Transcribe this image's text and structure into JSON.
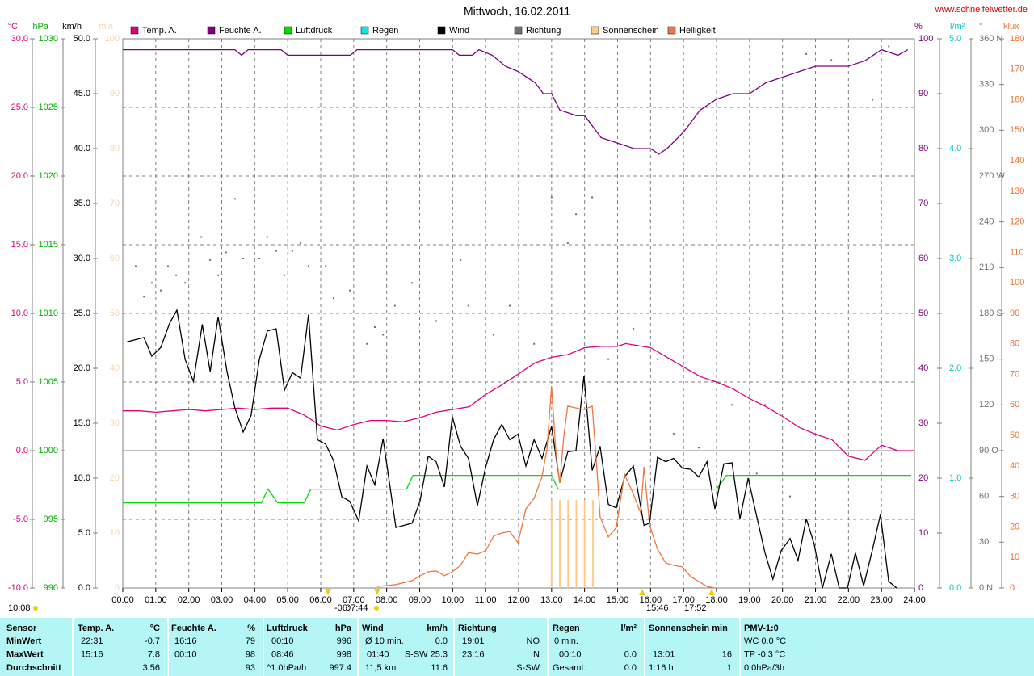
{
  "chart_data": {
    "type": "line",
    "title": "Mittwoch, 16.02.2011",
    "source": "www.schneifelwetter.de",
    "xlim": [
      0,
      24
    ],
    "xticks": [
      {
        "value": 0,
        "label": "00:00"
      },
      {
        "value": 1,
        "label": "01:00"
      },
      {
        "value": 2,
        "label": "02:00"
      },
      {
        "value": 3,
        "label": "03:00"
      },
      {
        "value": 4,
        "label": "04:00"
      },
      {
        "value": 5,
        "label": "05:00"
      },
      {
        "value": 6,
        "label": "06:00"
      },
      {
        "value": 7,
        "label": "07:00"
      },
      {
        "value": 8,
        "label": "08:00"
      },
      {
        "value": 9,
        "label": "09:00"
      },
      {
        "value": 10,
        "label": "10:00"
      },
      {
        "value": 11,
        "label": "11:00"
      },
      {
        "value": 12,
        "label": "12:00"
      },
      {
        "value": 13,
        "label": "13:00"
      },
      {
        "value": 14,
        "label": "14:00"
      },
      {
        "value": 15,
        "label": "15:00"
      },
      {
        "value": 16,
        "label": "16:00"
      },
      {
        "value": 17,
        "label": "17:00"
      },
      {
        "value": 18,
        "label": "18:00"
      },
      {
        "value": 19,
        "label": "19:00"
      },
      {
        "value": 20,
        "label": "20:00"
      },
      {
        "value": 21,
        "label": "21:00"
      },
      {
        "value": 22,
        "label": "22:00"
      },
      {
        "value": 23,
        "label": "23:00"
      },
      {
        "value": 24,
        "label": "24:00"
      }
    ],
    "grid": true,
    "axes": [
      {
        "label": "°C",
        "side": "left",
        "color": "#e0007f",
        "lim": [
          -10,
          30
        ],
        "ticks": [
          {
            "value": -10,
            "label": "-10.0"
          },
          {
            "value": -5,
            "label": "-5.0"
          },
          {
            "value": 0,
            "label": "0.0"
          },
          {
            "value": 5,
            "label": "5.0"
          },
          {
            "value": 10,
            "label": "10.0"
          },
          {
            "value": 15,
            "label": "15.0"
          },
          {
            "value": 20,
            "label": "20.0"
          },
          {
            "value": 25,
            "label": "25.0"
          },
          {
            "value": 30,
            "label": "30.0"
          }
        ]
      },
      {
        "label": "hPa",
        "side": "left",
        "color": "#00b000",
        "lim": [
          990,
          1030
        ],
        "ticks": [
          990,
          995,
          1000,
          1005,
          1010,
          1015,
          1020,
          1025,
          1030
        ]
      },
      {
        "label": "km/h",
        "side": "left",
        "color": "#000000",
        "lim": [
          0,
          50
        ],
        "ticks": [
          {
            "value": 0,
            "label": "0.0"
          },
          {
            "value": 5,
            "label": "5.0"
          },
          {
            "value": 10,
            "label": "10.0"
          },
          {
            "value": 15,
            "label": "15.0"
          },
          {
            "value": 20,
            "label": "20.0"
          },
          {
            "value": 25,
            "label": "25.0"
          },
          {
            "value": 30,
            "label": "30.0"
          },
          {
            "value": 35,
            "label": "35.0"
          },
          {
            "value": 40,
            "label": "40.0"
          },
          {
            "value": 45,
            "label": "45.0"
          },
          {
            "value": 50,
            "label": "50.0"
          }
        ]
      },
      {
        "label": "min",
        "side": "left",
        "color": "#f8d4a8",
        "lim": [
          0,
          100
        ],
        "ticks": [
          0,
          10,
          20,
          30,
          40,
          50,
          60,
          70,
          80,
          90,
          100
        ]
      },
      {
        "label": "%",
        "side": "right",
        "color": "#800080",
        "lim": [
          0,
          100
        ],
        "ticks": [
          0,
          10,
          20,
          30,
          40,
          50,
          60,
          70,
          80,
          90,
          100
        ]
      },
      {
        "label": "l/m²",
        "side": "right",
        "color": "#00c8c8",
        "lim": [
          0,
          5
        ],
        "ticks": [
          {
            "value": 0,
            "label": "0.0"
          },
          {
            "value": 1,
            "label": "1.0"
          },
          {
            "value": 2,
            "label": "2.0"
          },
          {
            "value": 3,
            "label": "3.0"
          },
          {
            "value": 4,
            "label": "4.0"
          },
          {
            "value": 5,
            "label": "5.0"
          }
        ]
      },
      {
        "label": "°",
        "side": "right",
        "color": "#707070",
        "lim": [
          0,
          360
        ],
        "ticks": [
          {
            "value": 0,
            "label": "0 N"
          },
          30,
          60,
          {
            "value": 90,
            "label": "90 O"
          },
          120,
          150,
          {
            "value": 180,
            "label": "180 S"
          },
          210,
          240,
          {
            "value": 270,
            "label": "270 W"
          },
          300,
          330,
          {
            "value": 360,
            "label": "360 N"
          }
        ]
      },
      {
        "label": "klux",
        "side": "right",
        "color": "#f07030",
        "lim": [
          0,
          180
        ],
        "ticks": [
          0,
          10,
          20,
          30,
          40,
          50,
          60,
          70,
          80,
          90,
          100,
          110,
          120,
          130,
          140,
          150,
          160,
          170,
          180
        ]
      }
    ],
    "series": [
      {
        "name": "Temp. A.",
        "color": "#e0007f",
        "type": "line",
        "axis": 0,
        "x": [
          0,
          0.5,
          1,
          1.5,
          2,
          2.5,
          3,
          3.5,
          4,
          4.5,
          5,
          5.5,
          6,
          6.5,
          7,
          7.5,
          8,
          8.5,
          9,
          9.5,
          10,
          10.5,
          11,
          11.5,
          12,
          12.5,
          13,
          13.5,
          14,
          14.5,
          15,
          15.25,
          15.5,
          16,
          16.5,
          17,
          17.5,
          18,
          18.5,
          19,
          19.5,
          20,
          20.5,
          21,
          21.5,
          22,
          22.5,
          23,
          23.5,
          24
        ],
        "values": [
          2.9,
          2.9,
          2.8,
          2.9,
          3.0,
          2.9,
          3.0,
          3.1,
          3.0,
          3.1,
          3.1,
          2.6,
          1.8,
          1.5,
          1.9,
          2.2,
          2.2,
          2.1,
          2.4,
          2.8,
          3.0,
          3.2,
          4.1,
          4.8,
          5.6,
          6.4,
          6.8,
          7.0,
          7.5,
          7.6,
          7.6,
          7.8,
          7.7,
          7.5,
          6.8,
          6.1,
          5.4,
          5.0,
          4.5,
          3.8,
          3.2,
          2.5,
          1.7,
          1.2,
          0.8,
          -0.4,
          -0.7,
          0.4,
          0.0,
          0.0
        ]
      },
      {
        "name": "Feuchte A.",
        "color": "#800080",
        "type": "line",
        "axis": 4,
        "x": [
          0,
          3.4,
          3.6,
          3.8,
          4.8,
          5.0,
          6.9,
          7.1,
          10.0,
          10.2,
          10.6,
          10.8,
          11.2,
          11.6,
          12.0,
          12.5,
          12.75,
          13.0,
          13.25,
          13.75,
          14.0,
          14.5,
          15.0,
          15.5,
          16.0,
          16.25,
          16.5,
          17.0,
          17.5,
          18.0,
          18.5,
          19.0,
          19.5,
          20.0,
          20.5,
          21.0,
          22.0,
          22.5,
          23.0,
          23.5,
          23.8
        ],
        "values": [
          98,
          98,
          97,
          98,
          98,
          97,
          97,
          98,
          98,
          97,
          97,
          98,
          97,
          95,
          94,
          92,
          90,
          90,
          87,
          86,
          86,
          82,
          81,
          80,
          80,
          79,
          80,
          83,
          87,
          89,
          90,
          90,
          92,
          93,
          94,
          95,
          95,
          96,
          98,
          97,
          98
        ]
      },
      {
        "name": "Luftdruck",
        "color": "#00dd00",
        "type": "line",
        "axis": 1,
        "x": [
          0,
          4.2,
          4.4,
          4.7,
          5.5,
          5.7,
          8.6,
          8.8,
          13.0,
          13.2,
          18.0,
          18.3,
          23.9
        ],
        "values": [
          996.2,
          996.2,
          997.2,
          996.2,
          996.2,
          997.2,
          997.2,
          998.2,
          998.2,
          997.2,
          997.2,
          998.2,
          998.2
        ]
      },
      {
        "name": "Regen",
        "color": "#00e8e8",
        "type": "line",
        "axis": 5,
        "x": [],
        "values": []
      },
      {
        "name": "Wind",
        "color": "#000000",
        "type": "line",
        "axis": 2,
        "x": [
          0.12,
          0.64,
          0.88,
          1.15,
          1.42,
          1.64,
          1.89,
          2.14,
          2.41,
          2.65,
          2.89,
          3.16,
          3.4,
          3.65,
          3.89,
          4.14,
          4.38,
          4.65,
          4.9,
          5.14,
          5.39,
          5.63,
          5.9,
          6.15,
          6.39,
          6.64,
          6.88,
          7.15,
          7.4,
          7.64,
          7.89,
          8.28,
          8.52,
          8.77,
          9.01,
          9.26,
          9.5,
          9.75,
          9.99,
          10.24,
          10.48,
          10.75,
          11.0,
          11.24,
          11.49,
          11.73,
          11.98,
          12.22,
          12.47,
          12.71,
          13.0,
          13.25,
          13.49,
          13.74,
          13.98,
          14.23,
          14.47,
          14.72,
          14.96,
          15.21,
          15.48,
          15.8,
          15.97,
          16.21,
          16.46,
          16.7,
          16.97,
          17.22,
          17.46,
          17.71,
          17.95,
          18.22,
          18.47,
          18.71,
          18.96,
          19.22,
          19.47,
          19.71,
          19.96,
          20.23,
          20.47,
          20.72,
          20.96,
          21.21,
          21.48,
          21.72,
          21.97,
          22.21,
          22.46,
          22.73,
          22.97,
          23.22,
          23.46
        ],
        "values": [
          22.4,
          22.8,
          21.1,
          21.9,
          24.1,
          25.3,
          20.8,
          18.8,
          24.0,
          19.7,
          24.7,
          19.7,
          16.4,
          14.2,
          15.7,
          20.8,
          23.4,
          23.6,
          18.0,
          19.6,
          19.1,
          24.9,
          13.5,
          13.1,
          11.6,
          8.3,
          7.9,
          6.1,
          11.1,
          9.4,
          13.6,
          5.5,
          5.7,
          5.9,
          7.9,
          12.0,
          11.5,
          9.2,
          15.6,
          12.9,
          11.8,
          7.5,
          11.0,
          13.5,
          14.9,
          13.5,
          14.0,
          11.1,
          13.5,
          11.8,
          14.7,
          9.6,
          12.4,
          12.5,
          19.3,
          10.7,
          12.9,
          7.6,
          7.3,
          10.1,
          11.1,
          5.7,
          5.9,
          11.9,
          11.5,
          11.8,
          10.9,
          10.8,
          10.1,
          11.5,
          7.2,
          11.3,
          11.4,
          6.3,
          10.0,
          6.5,
          3.2,
          0.8,
          3.4,
          4.5,
          2.5,
          6.3,
          4.0,
          0.0,
          3.1,
          0.0,
          0.0,
          3.2,
          0.2,
          3.5,
          6.7,
          0.6,
          0.0
        ]
      },
      {
        "name": "Richtung",
        "color": "#707070",
        "type": "scatter",
        "axis": 6,
        "x": [
          0.39,
          0.64,
          0.88,
          1.15,
          1.37,
          1.62,
          1.89,
          2.38,
          2.65,
          2.89,
          3.13,
          3.4,
          3.65,
          4.14,
          4.38,
          4.65,
          4.9,
          5.14,
          5.39,
          5.63,
          6.15,
          6.39,
          6.88,
          7.4,
          7.64,
          7.89,
          8.25,
          8.77,
          9.5,
          10.24,
          10.48,
          11.24,
          11.73,
          12.47,
          13.0,
          13.49,
          13.74,
          14.23,
          14.72,
          15.48,
          15.97,
          16.21,
          16.7,
          17.46,
          18.47,
          19.22,
          19.47,
          20.23,
          20.72,
          21.48,
          22.73,
          23.22
        ],
        "values": [
          211,
          191,
          200,
          195,
          211,
          205,
          200,
          230,
          215,
          205,
          220,
          255,
          216,
          216,
          230,
          221,
          205,
          221,
          226,
          211,
          211,
          190,
          195,
          160,
          171,
          166,
          185,
          200,
          175,
          215,
          185,
          166,
          185,
          160,
          256,
          226,
          245,
          256,
          150,
          170,
          241,
          150,
          101,
          92,
          120,
          75,
          120,
          60,
          350,
          346,
          320,
          355
        ]
      },
      {
        "name": "Sonnenschein",
        "color": "#ffcc88",
        "type": "bar",
        "axis": 3,
        "x": [
          13.0,
          13.25,
          13.5,
          13.75,
          14.0,
          14.25
        ],
        "values": [
          16,
          16,
          16,
          16,
          16,
          16
        ]
      },
      {
        "name": "Helligkeit",
        "color": "#f07840",
        "type": "line",
        "axis": 7,
        "x": [
          7.71,
          8.28,
          8.77,
          9.01,
          9.26,
          9.5,
          9.75,
          9.99,
          10.24,
          10.48,
          10.75,
          11.0,
          11.24,
          11.49,
          11.73,
          11.98,
          12.22,
          12.47,
          12.71,
          12.86,
          13.0,
          13.13,
          13.25,
          13.37,
          13.49,
          13.74,
          13.98,
          14.23,
          14.35,
          14.47,
          14.72,
          14.96,
          15.21,
          15.48,
          15.7,
          15.8,
          15.97,
          16.21,
          16.46,
          16.7,
          16.97,
          17.22,
          17.46,
          17.71,
          17.95
        ],
        "values": [
          0.5,
          1.1,
          2.4,
          4.0,
          5.3,
          5.6,
          4.0,
          5.3,
          7.4,
          11.6,
          11.1,
          12.2,
          17.0,
          18.0,
          18.5,
          14.8,
          25.9,
          29.4,
          36.5,
          45.5,
          66.2,
          44.5,
          34.4,
          49.7,
          59.6,
          59.0,
          58.5,
          59.6,
          42.3,
          23.3,
          16.7,
          19.8,
          37.3,
          30.7,
          24.6,
          39.7,
          20.6,
          12.7,
          8.2,
          7.4,
          6.9,
          3.7,
          2.1,
          0.5,
          0
        ]
      }
    ],
    "annotations": [
      "10:08",
      "-06:",
      "07:44",
      "15:46",
      "17:52"
    ]
  },
  "stats_table": {
    "header": [
      "Sensor",
      "Temp. A.",
      "°C",
      "Feuchte A.",
      "%",
      "Luftdruck",
      "hPa",
      "Wind",
      "km/h",
      "Richtung",
      "Regen",
      "l/m²",
      "Sonnenschein min",
      "PMV-1:0"
    ],
    "rows": [
      [
        "MinWert",
        "22:31",
        "-0.7",
        "16:16",
        "79",
        "00:10",
        "996",
        "Ø 10 min.",
        "0.0",
        "19:01",
        "NO",
        "0 min.",
        "WC 0.0 °C"
      ],
      [
        "MaxWert",
        "15:16",
        "7.8",
        "00:10",
        "98",
        "08:46",
        "998",
        "01:40",
        "S-SW 25.3",
        "23:16",
        "N",
        "00:10",
        "0.0",
        "13:01",
        "16",
        "TP -0.3 °C"
      ],
      [
        "Durchschnitt",
        "3.56",
        "93",
        "^1.0hPa/h",
        "997.4",
        "11,5 km",
        "11.6",
        "S-SW",
        "Gesamt:",
        "0.0",
        "1:16 h",
        "1",
        "0.0hPa/3h"
      ]
    ]
  }
}
